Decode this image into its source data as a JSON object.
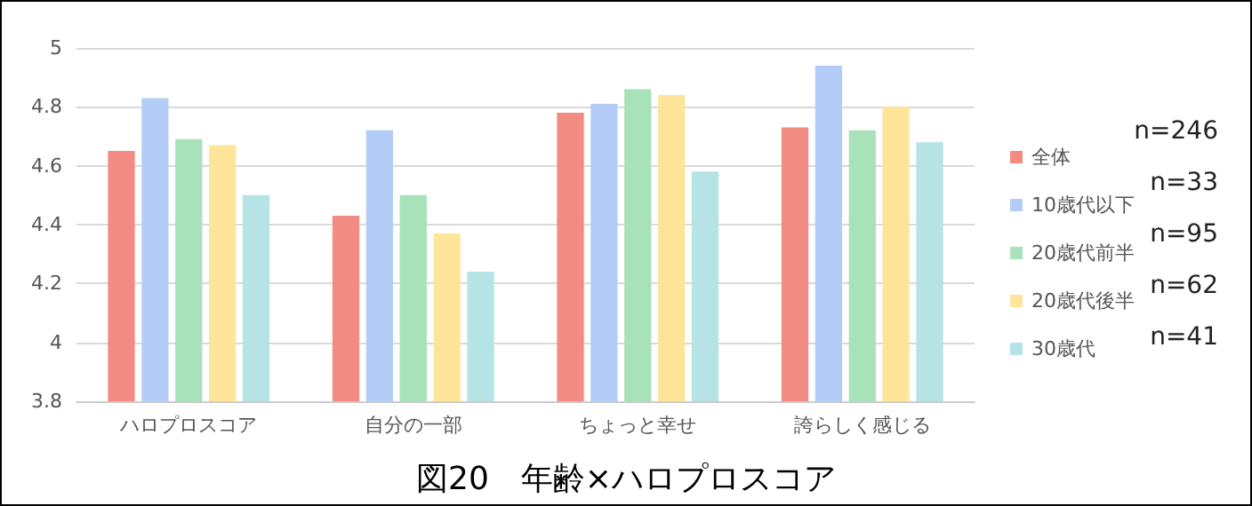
{
  "chart_data": {
    "type": "bar",
    "title": "図20　年齢×ハロプロスコア",
    "categories": [
      "ハロプロスコア",
      "自分の一部",
      "ちょっと幸せ",
      "誇らしく感じる"
    ],
    "series": [
      {
        "name": "全体",
        "color": "#f28b82",
        "values": [
          4.65,
          4.43,
          4.78,
          4.73
        ]
      },
      {
        "name": "10歳代以下",
        "color": "#b4cdf8",
        "values": [
          4.83,
          4.72,
          4.81,
          4.94
        ]
      },
      {
        "name": "20歳代前半",
        "color": "#a8e2b8",
        "values": [
          4.69,
          4.5,
          4.86,
          4.72
        ]
      },
      {
        "name": "20歳代後半",
        "color": "#fee599",
        "values": [
          4.67,
          4.37,
          4.84,
          4.8
        ]
      },
      {
        "name": "30歳代",
        "color": "#b5e3e6",
        "values": [
          4.5,
          4.24,
          4.58,
          4.68
        ]
      }
    ],
    "annotations": [
      "n=246",
      "n=33",
      "n=95",
      "n=62",
      "n=41"
    ],
    "ylim": [
      3.8,
      5
    ],
    "yticks": [
      3.8,
      4,
      4.2,
      4.4,
      4.6,
      4.8,
      5
    ],
    "grid": "y",
    "legend": "right"
  }
}
